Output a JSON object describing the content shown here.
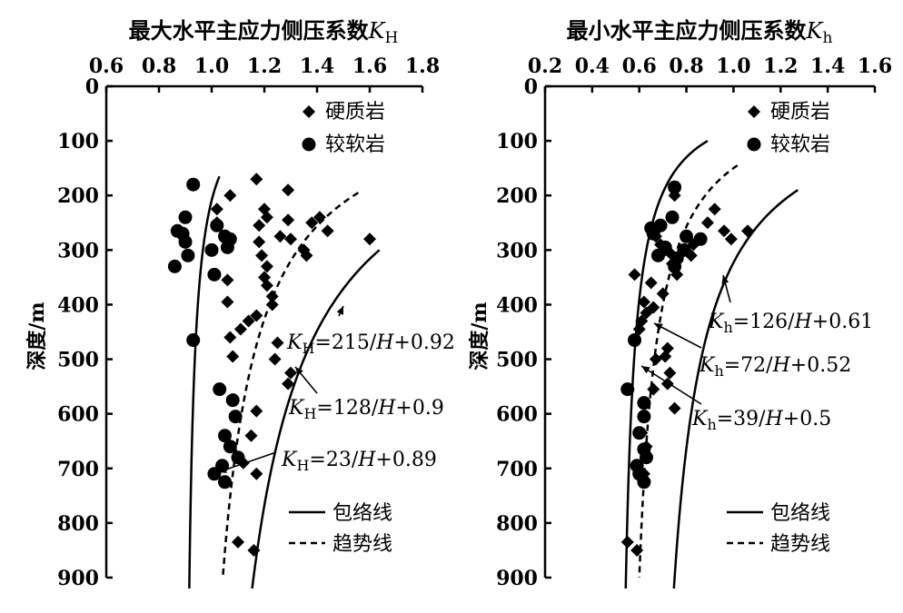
{
  "chart_data": [
    {
      "type": "scatter",
      "title": "最大水平主应力侧压系数",
      "title_var": "K",
      "title_sub": "H",
      "ylabel": "深度/m",
      "xlim": [
        0.6,
        1.8
      ],
      "ylim": [
        0,
        900
      ],
      "y_inverted": true,
      "x_axis_position": "top",
      "x_ticks": [
        0.6,
        0.8,
        1.0,
        1.2,
        1.4,
        1.6,
        1.8
      ],
      "x_tick_labels": [
        "0.6",
        "0.8",
        "1.0",
        "1.2",
        "1.4",
        "1.6",
        "1.8"
      ],
      "y_ticks": [
        0,
        100,
        200,
        300,
        400,
        500,
        600,
        700,
        800,
        900
      ],
      "y_tick_labels": [
        "0",
        "100",
        "200",
        "300",
        "400",
        "500",
        "600",
        "700",
        "800",
        "900"
      ],
      "legend_placement": "top-right",
      "series": [
        {
          "name": "硬质岩",
          "marker": "diamond",
          "points": [
            [
              1.02,
              225
            ],
            [
              1.07,
              200
            ],
            [
              1.02,
              250
            ],
            [
              1.17,
              170
            ],
            [
              1.2,
              225
            ],
            [
              1.18,
              255
            ],
            [
              1.21,
              240
            ],
            [
              1.29,
              190
            ],
            [
              1.29,
              245
            ],
            [
              1.26,
              275
            ],
            [
              1.3,
              280
            ],
            [
              1.35,
              300
            ],
            [
              1.36,
              310
            ],
            [
              1.38,
              250
            ],
            [
              1.41,
              240
            ],
            [
              1.44,
              265
            ],
            [
              1.6,
              280
            ],
            [
              1.18,
              285
            ],
            [
              1.19,
              310
            ],
            [
              1.21,
              330
            ],
            [
              1.2,
              350
            ],
            [
              1.21,
              365
            ],
            [
              1.23,
              385
            ],
            [
              1.23,
              400
            ],
            [
              1.17,
              420
            ],
            [
              1.14,
              430
            ],
            [
              1.11,
              445
            ],
            [
              1.06,
              355
            ],
            [
              1.06,
              395
            ],
            [
              1.07,
              460
            ],
            [
              1.25,
              470
            ],
            [
              1.24,
              500
            ],
            [
              1.3,
              525
            ],
            [
              1.29,
              545
            ],
            [
              1.08,
              495
            ],
            [
              1.17,
              595
            ],
            [
              1.15,
              640
            ],
            [
              1.12,
              690
            ],
            [
              1.17,
              710
            ],
            [
              1.1,
              835
            ],
            [
              1.16,
              850
            ]
          ]
        },
        {
          "name": "较软岩",
          "marker": "circle",
          "points": [
            [
              0.93,
              180
            ],
            [
              0.9,
              240
            ],
            [
              0.89,
              270
            ],
            [
              0.9,
              285
            ],
            [
              0.87,
              265
            ],
            [
              1.02,
              255
            ],
            [
              1.05,
              275
            ],
            [
              1.07,
              280
            ],
            [
              1.06,
              295
            ],
            [
              1.0,
              300
            ],
            [
              0.91,
              310
            ],
            [
              0.86,
              330
            ],
            [
              1.01,
              345
            ],
            [
              0.93,
              465
            ],
            [
              1.03,
              555
            ],
            [
              1.08,
              575
            ],
            [
              1.09,
              605
            ],
            [
              1.05,
              640
            ],
            [
              1.07,
              660
            ],
            [
              1.1,
              680
            ],
            [
              1.04,
              695
            ],
            [
              1.01,
              710
            ],
            [
              1.05,
              725
            ]
          ]
        }
      ],
      "curves": [
        {
          "name": "KH=215/H+0.92",
          "kind": "包络线",
          "a": 215,
          "b": 0.92,
          "h_start": 300,
          "h_end": 920
        },
        {
          "name": "KH=128/H+0.9",
          "kind": "趋势线",
          "a": 128,
          "b": 0.9,
          "h_start": 195,
          "h_end": 900
        },
        {
          "name": "KH=23/H+0.89",
          "kind": "包络线",
          "a": 23,
          "b": 0.89,
          "h_start": 165,
          "h_end": 920
        }
      ],
      "annotations": [
        {
          "prefix": "K",
          "sub": "H",
          "text": "=215/",
          "var": "H",
          "tail": "+0.92"
        },
        {
          "prefix": "K",
          "sub": "H",
          "text": "=128/",
          "var": "H",
          "tail": "+0.9"
        },
        {
          "prefix": "K",
          "sub": "H",
          "text": "=23/",
          "var": "H",
          "tail": "+0.89"
        }
      ],
      "line_legend": [
        {
          "name": "包络线",
          "style": "solid"
        },
        {
          "name": "趋势线",
          "style": "dashed"
        }
      ]
    },
    {
      "type": "scatter",
      "title": "最小水平主应力侧压系数",
      "title_var": "K",
      "title_sub": "h",
      "ylabel": "深度/m",
      "xlim": [
        0.2,
        1.6
      ],
      "ylim": [
        0,
        900
      ],
      "y_inverted": true,
      "x_axis_position": "top",
      "x_ticks": [
        0.2,
        0.4,
        0.6,
        0.8,
        1.0,
        1.2,
        1.4,
        1.6
      ],
      "x_tick_labels": [
        "0.2",
        "0.4",
        "0.6",
        "0.8",
        "1.0",
        "1.2",
        "1.4",
        "1.6"
      ],
      "y_ticks": [
        0,
        100,
        200,
        300,
        400,
        500,
        600,
        700,
        800,
        900
      ],
      "y_tick_labels": [
        "0",
        "100",
        "200",
        "300",
        "400",
        "500",
        "600",
        "700",
        "800",
        "900"
      ],
      "legend_placement": "top-right",
      "series": [
        {
          "name": "硬质岩",
          "marker": "diamond",
          "points": [
            [
              0.75,
              200
            ],
            [
              0.92,
              225
            ],
            [
              0.89,
              250
            ],
            [
              0.96,
              265
            ],
            [
              0.99,
              280
            ],
            [
              1.06,
              265
            ],
            [
              0.83,
              290
            ],
            [
              0.82,
              310
            ],
            [
              0.65,
              260
            ],
            [
              0.67,
              275
            ],
            [
              0.69,
              290
            ],
            [
              0.71,
              300
            ],
            [
              0.73,
              305
            ],
            [
              0.74,
              325
            ],
            [
              0.76,
              345
            ],
            [
              0.58,
              345
            ],
            [
              0.65,
              360
            ],
            [
              0.7,
              380
            ],
            [
              0.62,
              395
            ],
            [
              0.66,
              405
            ],
            [
              0.63,
              415
            ],
            [
              0.61,
              430
            ],
            [
              0.6,
              445
            ],
            [
              0.72,
              480
            ],
            [
              0.71,
              495
            ],
            [
              0.67,
              500
            ],
            [
              0.73,
              525
            ],
            [
              0.72,
              545
            ],
            [
              0.66,
              555
            ],
            [
              0.75,
              590
            ],
            [
              0.62,
              605
            ],
            [
              0.61,
              635
            ],
            [
              0.63,
              660
            ],
            [
              0.59,
              695
            ],
            [
              0.62,
              710
            ],
            [
              0.55,
              835
            ],
            [
              0.59,
              850
            ]
          ]
        },
        {
          "name": "较软岩",
          "marker": "circle",
          "points": [
            [
              0.75,
              185
            ],
            [
              0.74,
              240
            ],
            [
              0.69,
              255
            ],
            [
              0.65,
              260
            ],
            [
              0.66,
              270
            ],
            [
              0.8,
              275
            ],
            [
              0.86,
              280
            ],
            [
              0.71,
              295
            ],
            [
              0.68,
              310
            ],
            [
              0.79,
              300
            ],
            [
              0.76,
              315
            ],
            [
              0.75,
              330
            ],
            [
              0.58,
              465
            ],
            [
              0.55,
              555
            ],
            [
              0.62,
              580
            ],
            [
              0.62,
              605
            ],
            [
              0.6,
              635
            ],
            [
              0.62,
              665
            ],
            [
              0.63,
              680
            ],
            [
              0.59,
              695
            ],
            [
              0.6,
              710
            ],
            [
              0.62,
              725
            ]
          ]
        }
      ],
      "curves": [
        {
          "name": "Kh=126/H+0.61",
          "kind": "包络线",
          "a": 126,
          "b": 0.61,
          "h_start": 190,
          "h_end": 920
        },
        {
          "name": "Kh=72/H+0.52",
          "kind": "趋势线",
          "a": 72,
          "b": 0.52,
          "h_start": 145,
          "h_end": 900
        },
        {
          "name": "Kh=39/H+0.5",
          "kind": "包络线",
          "a": 39,
          "b": 0.5,
          "h_start": 100,
          "h_end": 920
        }
      ],
      "annotations": [
        {
          "prefix": "K",
          "sub": "h",
          "text": "=126/",
          "var": "H",
          "tail": "+0.61"
        },
        {
          "prefix": "K",
          "sub": "h",
          "text": "=72/",
          "var": "H",
          "tail": "+0.52"
        },
        {
          "prefix": "K",
          "sub": "h",
          "text": "=39/",
          "var": "H",
          "tail": "+0.5"
        }
      ],
      "line_legend": [
        {
          "name": "包络线",
          "style": "solid"
        },
        {
          "name": "趋势线",
          "style": "dashed"
        }
      ]
    }
  ]
}
